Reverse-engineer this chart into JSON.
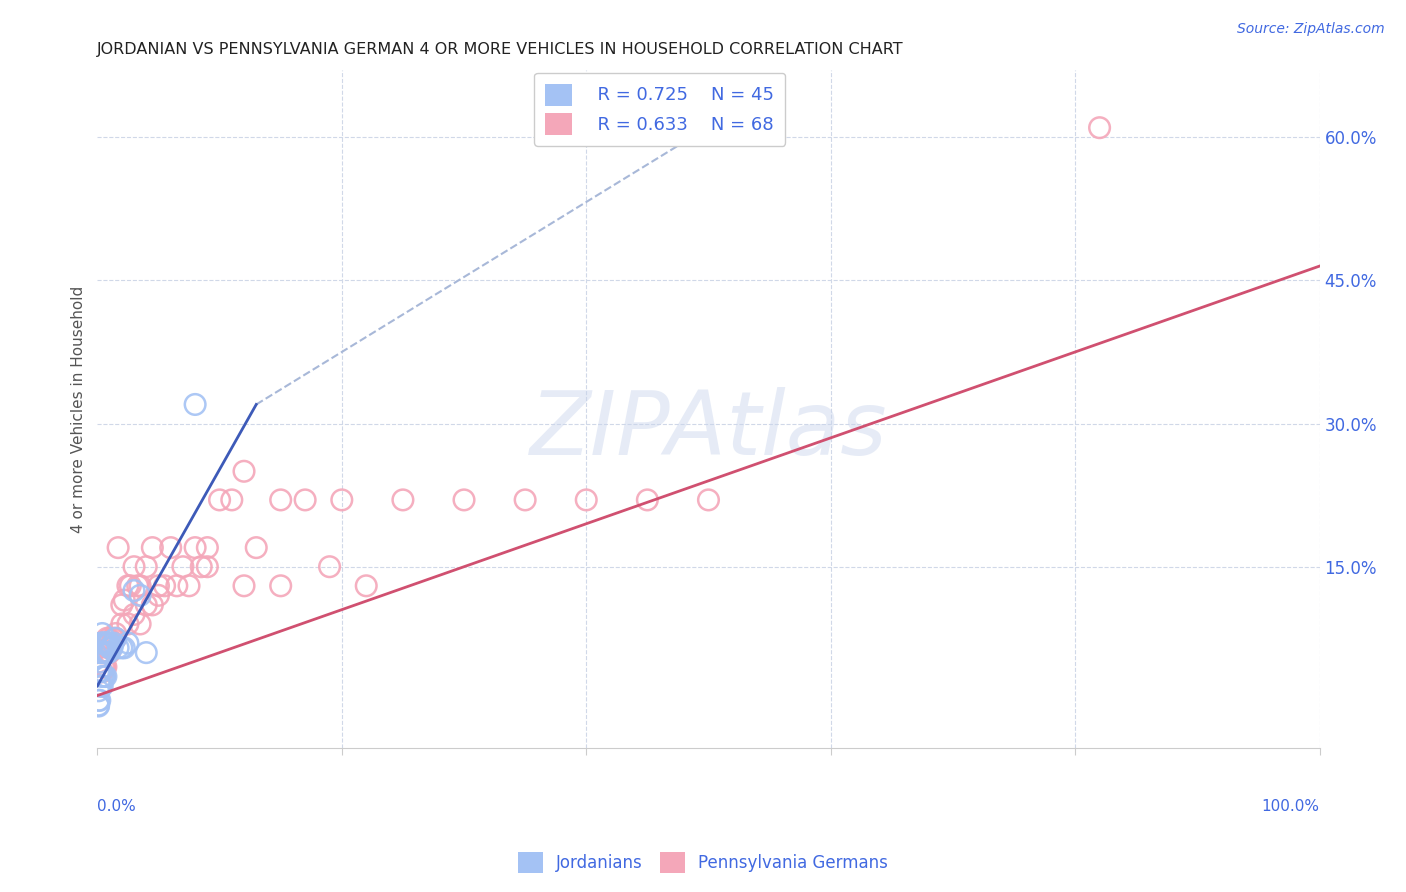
{
  "title": "JORDANIAN VS PENNSYLVANIA GERMAN 4 OR MORE VEHICLES IN HOUSEHOLD CORRELATION CHART",
  "source": "Source: ZipAtlas.com",
  "ylabel": "4 or more Vehicles in Household",
  "ytick_labels": [
    "15.0%",
    "30.0%",
    "45.0%",
    "60.0%"
  ],
  "ytick_values": [
    0.15,
    0.3,
    0.45,
    0.6
  ],
  "xlim": [
    0,
    1.0
  ],
  "ylim": [
    -0.04,
    0.67
  ],
  "watermark_text": "ZIPAtlas",
  "legend_r1": "R = 0.725",
  "legend_n1": "N = 45",
  "legend_r2": "R = 0.633",
  "legend_n2": "N = 68",
  "jordanian_color": "#a4c2f4",
  "penn_german_color": "#f4a7b9",
  "jordanian_line_color": "#3d5ab8",
  "penn_german_line_color": "#d05070",
  "dashed_line_color": "#a8b8d8",
  "background_color": "#ffffff",
  "grid_color": "#d0d8e8",
  "title_color": "#222222",
  "source_color": "#4169e1",
  "axis_label_color": "#4169e1",
  "jordanian_x": [
    0.001,
    0.002,
    0.002,
    0.003,
    0.003,
    0.004,
    0.004,
    0.005,
    0.005,
    0.006,
    0.006,
    0.007,
    0.007,
    0.008,
    0.008,
    0.009,
    0.009,
    0.01,
    0.01,
    0.011,
    0.012,
    0.013,
    0.015,
    0.017,
    0.02,
    0.022,
    0.025,
    0.03,
    0.035,
    0.04,
    0.002,
    0.003,
    0.004,
    0.005,
    0.006,
    0.007,
    0.002,
    0.003,
    0.004,
    0.001,
    0.001,
    0.002,
    0.001,
    0.001,
    0.08
  ],
  "jordanian_y": [
    0.04,
    0.05,
    0.06,
    0.06,
    0.07,
    0.07,
    0.08,
    0.06,
    0.07,
    0.06,
    0.07,
    0.06,
    0.07,
    0.06,
    0.07,
    0.06,
    0.07,
    0.065,
    0.07,
    0.065,
    0.065,
    0.07,
    0.075,
    0.065,
    0.065,
    0.065,
    0.07,
    0.125,
    0.12,
    0.06,
    0.04,
    0.04,
    0.035,
    0.035,
    0.035,
    0.035,
    0.025,
    0.025,
    0.025,
    0.02,
    0.01,
    0.01,
    0.005,
    0.004,
    0.32
  ],
  "penn_x": [
    0.001,
    0.002,
    0.003,
    0.004,
    0.005,
    0.006,
    0.007,
    0.008,
    0.009,
    0.01,
    0.011,
    0.012,
    0.013,
    0.015,
    0.017,
    0.02,
    0.022,
    0.025,
    0.027,
    0.03,
    0.033,
    0.035,
    0.04,
    0.045,
    0.05,
    0.055,
    0.06,
    0.065,
    0.07,
    0.075,
    0.08,
    0.085,
    0.09,
    0.1,
    0.11,
    0.12,
    0.13,
    0.15,
    0.17,
    0.2,
    0.25,
    0.3,
    0.35,
    0.4,
    0.45,
    0.5,
    0.003,
    0.004,
    0.005,
    0.006,
    0.007,
    0.008,
    0.009,
    0.01,
    0.015,
    0.02,
    0.025,
    0.03,
    0.035,
    0.04,
    0.045,
    0.05,
    0.09,
    0.12,
    0.15,
    0.19,
    0.22,
    0.82
  ],
  "penn_y": [
    0.05,
    0.05,
    0.06,
    0.06,
    0.06,
    0.06,
    0.07,
    0.06,
    0.07,
    0.06,
    0.065,
    0.07,
    0.075,
    0.075,
    0.17,
    0.11,
    0.115,
    0.13,
    0.13,
    0.15,
    0.13,
    0.13,
    0.15,
    0.17,
    0.12,
    0.13,
    0.17,
    0.13,
    0.15,
    0.13,
    0.17,
    0.15,
    0.17,
    0.22,
    0.22,
    0.25,
    0.17,
    0.22,
    0.22,
    0.22,
    0.22,
    0.22,
    0.22,
    0.22,
    0.22,
    0.22,
    0.04,
    0.04,
    0.045,
    0.045,
    0.045,
    0.075,
    0.065,
    0.075,
    0.08,
    0.09,
    0.09,
    0.1,
    0.09,
    0.11,
    0.11,
    0.13,
    0.15,
    0.13,
    0.13,
    0.15,
    0.13,
    0.61
  ],
  "jordanian_line_x": [
    0.0,
    0.13
  ],
  "jordanian_line_y": [
    0.025,
    0.32
  ],
  "penn_line_x": [
    0.0,
    1.0
  ],
  "penn_line_y": [
    0.015,
    0.465
  ],
  "dashed_line_x": [
    0.13,
    0.55
  ],
  "dashed_line_y": [
    0.32,
    0.65
  ]
}
